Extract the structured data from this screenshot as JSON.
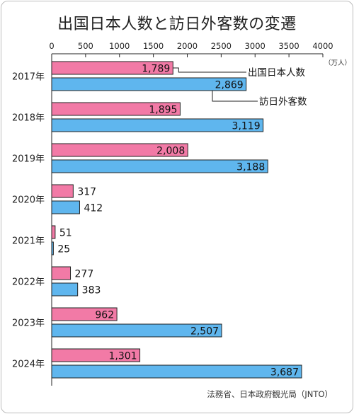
{
  "title": "出国日本人数と訪日外客数の変遷",
  "unit": "（万人）",
  "source": "法務省、日本政府観光局（JNTO）",
  "colors": {
    "outbound": "#f27aa6",
    "inbound": "#5fb6ee"
  },
  "chart_data": {
    "type": "bar",
    "orientation": "horizontal",
    "categories": [
      "2017年",
      "2018年",
      "2019年",
      "2020年",
      "2021年",
      "2022年",
      "2023年",
      "2024年"
    ],
    "series": [
      {
        "name": "出国日本人数",
        "values": [
          1789,
          1895,
          2008,
          317,
          51,
          277,
          962,
          1301
        ],
        "labels": [
          "1,789",
          "1,895",
          "2,008",
          "317",
          "51",
          "277",
          "962",
          "1,301"
        ]
      },
      {
        "name": "訪日外客数",
        "values": [
          2869,
          3119,
          3188,
          412,
          25,
          383,
          2507,
          3687
        ],
        "labels": [
          "2,869",
          "3,119",
          "3,188",
          "412",
          "25",
          "383",
          "2,507",
          "3,687"
        ]
      }
    ],
    "xticks": [
      "0",
      "500",
      "1000",
      "1500",
      "2000",
      "2500",
      "3000",
      "3500",
      "4000"
    ],
    "xlim": [
      0,
      4000
    ]
  }
}
